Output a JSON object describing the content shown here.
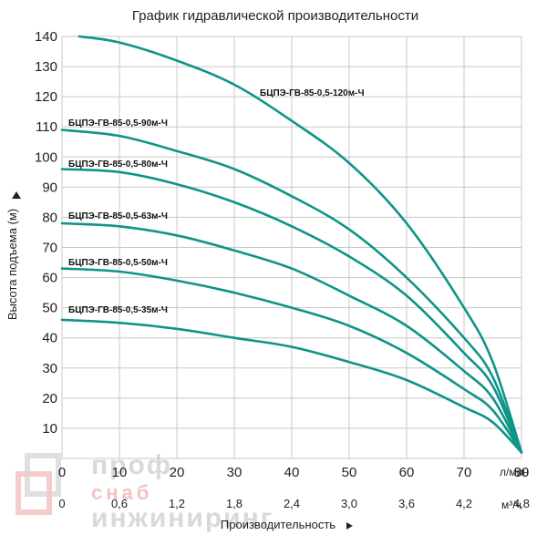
{
  "chart_data": {
    "type": "line",
    "title": "График гидравлической производительности",
    "xlabel": "Производительность",
    "ylabel": "Высота подъема (м)",
    "x_unit_primary": "л/мин",
    "x_unit_secondary": "м³/ч",
    "xlim": [
      0,
      80
    ],
    "ylim": [
      0,
      140
    ],
    "x_ticks": [
      0,
      10,
      20,
      30,
      40,
      50,
      60,
      70,
      80
    ],
    "x_ticks_secondary": [
      "0",
      "0,6",
      "1,2",
      "1,8",
      "2,4",
      "3,0",
      "3,6",
      "4,2",
      "4,8"
    ],
    "y_ticks": [
      10,
      20,
      30,
      40,
      50,
      60,
      70,
      80,
      90,
      100,
      110,
      120,
      130,
      140
    ],
    "grid": true,
    "series": [
      {
        "name": "БЦПЭ-ГВ-85-0,5-120м-Ч",
        "x": [
          3,
          10,
          20,
          30,
          40,
          50,
          60,
          70,
          75,
          80
        ],
        "y": [
          140,
          138,
          132,
          124,
          112,
          98,
          78,
          50,
          32,
          2
        ]
      },
      {
        "name": "БЦПЭ-ГВ-85-0,5-90м-Ч",
        "x": [
          0,
          10,
          20,
          30,
          40,
          50,
          60,
          70,
          75,
          80
        ],
        "y": [
          109,
          107,
          102,
          96,
          87,
          76,
          60,
          40,
          27,
          2
        ]
      },
      {
        "name": "БЦПЭ-ГВ-85-0,5-80м-Ч",
        "x": [
          0,
          10,
          20,
          30,
          40,
          50,
          60,
          70,
          75,
          80
        ],
        "y": [
          96,
          95,
          91,
          85,
          77,
          67,
          54,
          35,
          24,
          2
        ]
      },
      {
        "name": "БЦПЭ-ГВ-85-0,5-63м-Ч",
        "x": [
          0,
          10,
          20,
          30,
          40,
          50,
          60,
          70,
          75,
          80
        ],
        "y": [
          78,
          77,
          74,
          69,
          63,
          54,
          44,
          29,
          20,
          2
        ]
      },
      {
        "name": "БЦПЭ-ГВ-85-0,5-50м-Ч",
        "x": [
          0,
          10,
          20,
          30,
          40,
          50,
          60,
          70,
          75,
          80
        ],
        "y": [
          63,
          62,
          59,
          55,
          50,
          44,
          35,
          23,
          16,
          2
        ]
      },
      {
        "name": "БЦПЭ-ГВ-85-0,5-35м-Ч",
        "x": [
          0,
          10,
          20,
          30,
          40,
          50,
          60,
          70,
          75,
          80
        ],
        "y": [
          46,
          45,
          43,
          40,
          37,
          32,
          26,
          17,
          12,
          2
        ]
      }
    ]
  },
  "watermark": {
    "line1": "проф",
    "line2": "снаб",
    "line3": "инжиниринг",
    "colors": {
      "gray": "#d9d9d9",
      "red": "#f2c2c2"
    }
  },
  "colors": {
    "curve": "#0f9488",
    "grid": "#c8c8c8"
  }
}
